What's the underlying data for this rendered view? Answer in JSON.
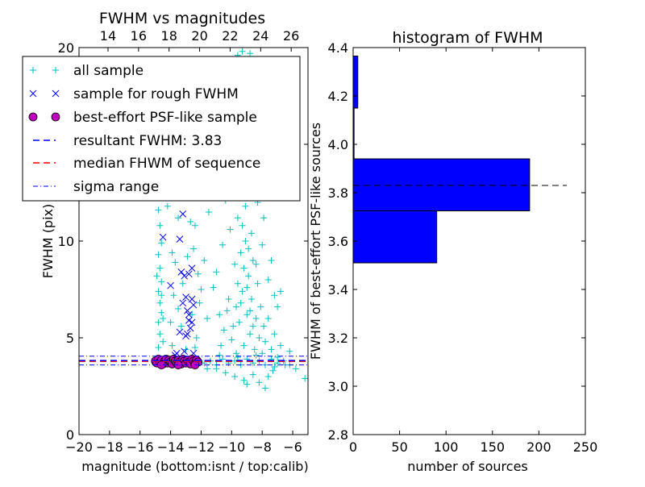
{
  "chart_data": [
    {
      "type": "scatter",
      "title": "FWHM vs magnitudes",
      "xlabel": "magnitude (bottom:isnt / top:calib)",
      "ylabel": "FWHM (pix)",
      "xlim": [
        -20,
        -5
      ],
      "ylim": [
        0,
        20
      ],
      "xticks": [
        -20,
        -18,
        -16,
        -14,
        -12,
        -10,
        -8,
        -6
      ],
      "xtick_labels": [
        "−20",
        "−18",
        "−16",
        "−14",
        "−12",
        "−10",
        "−8",
        "−6"
      ],
      "yticks": [
        0,
        5,
        10,
        15,
        20
      ],
      "ytick_labels": [
        "0",
        "5",
        "10",
        "15",
        "20"
      ],
      "top_xticks": [
        14,
        16,
        18,
        20,
        22,
        24,
        26
      ],
      "top_xtick_labels": [
        "14",
        "16",
        "18",
        "20",
        "22",
        "24",
        "26"
      ],
      "top_axis_offset": 32.1,
      "grid": false,
      "legend_placement": "upper-left",
      "legend": [
        {
          "label": "all sample",
          "marker": "plus",
          "color": "#00bfbf"
        },
        {
          "label": "sample for rough FWHM",
          "marker": "x",
          "color": "#0000ff"
        },
        {
          "label": "best-effort PSF-like sample",
          "marker": "circle",
          "color": "#bf00bf"
        },
        {
          "label": "resultant FWHM: 3.83",
          "marker": "dashed",
          "color": "#0000ff"
        },
        {
          "label": "median FHWM of sequence",
          "marker": "dashed",
          "color": "#ff0000"
        },
        {
          "label": "sigma range",
          "marker": "dashdot",
          "color": "#0000ff"
        }
      ],
      "hlines": {
        "resultant": 3.83,
        "median": 3.83,
        "sigma_low": 3.6,
        "sigma_high": 4.05
      },
      "series": [
        {
          "name": "all sample",
          "color": "#00bfbf",
          "points": [
            [
              -14.8,
              4.5
            ],
            [
              -14.7,
              5.2
            ],
            [
              -14.8,
              5.8
            ],
            [
              -14.6,
              6.3
            ],
            [
              -14.7,
              6.8
            ],
            [
              -14.8,
              7.4
            ],
            [
              -14.6,
              7.9
            ],
            [
              -14.7,
              8.6
            ],
            [
              -14.8,
              9.3
            ],
            [
              -14.6,
              9.9
            ],
            [
              -14.7,
              10.8
            ],
            [
              -14.8,
              11.6
            ],
            [
              -14.6,
              12.4
            ],
            [
              -14.7,
              13.2
            ],
            [
              -14.6,
              14.5
            ],
            [
              -14.8,
              15.8
            ],
            [
              -14.5,
              4.8
            ],
            [
              -14.5,
              6.0
            ],
            [
              -14.6,
              7.2
            ],
            [
              -14.9,
              8.2
            ],
            [
              -14.2,
              11.8
            ],
            [
              -13.9,
              9.4
            ],
            [
              -13.7,
              8.9
            ],
            [
              -13.5,
              11.2
            ],
            [
              -13.3,
              12.3
            ],
            [
              -13.0,
              12.6
            ],
            [
              -12.7,
              11.0
            ],
            [
              -12.4,
              10.8
            ],
            [
              -13.8,
              7.2
            ],
            [
              -13.5,
              6.5
            ],
            [
              -13.2,
              7.8
            ],
            [
              -12.9,
              9.2
            ],
            [
              -12.5,
              9.6
            ],
            [
              -12.2,
              8.3
            ],
            [
              -12.0,
              7.5
            ],
            [
              -14.0,
              5.8
            ],
            [
              -13.3,
              5.6
            ],
            [
              -12.6,
              6.2
            ],
            [
              -12.3,
              5.0
            ],
            [
              -12.1,
              6.8
            ],
            [
              -13.9,
              4.6
            ],
            [
              -13.0,
              4.4
            ],
            [
              -12.4,
              4.5
            ],
            [
              -14.2,
              13.8
            ],
            [
              -13.6,
              15.2
            ],
            [
              -12.8,
              14.0
            ],
            [
              -12.2,
              13.0
            ],
            [
              -11.8,
              9.0
            ],
            [
              -11.6,
              6.0
            ],
            [
              -11.5,
              11.5
            ],
            [
              -11.2,
              7.6
            ],
            [
              -11.0,
              8.4
            ],
            [
              -10.8,
              6.2
            ],
            [
              -10.6,
              9.8
            ],
            [
              -10.5,
              5.4
            ],
            [
              -10.4,
              12.1
            ],
            [
              -10.2,
              7.0
            ],
            [
              -10.1,
              10.6
            ],
            [
              -10.0,
              4.9
            ],
            [
              -9.9,
              13.5
            ],
            [
              -9.8,
              8.8
            ],
            [
              -9.7,
              6.6
            ],
            [
              -9.6,
              11.2
            ],
            [
              -9.5,
              5.8
            ],
            [
              -9.4,
              9.4
            ],
            [
              -9.3,
              7.4
            ],
            [
              -9.2,
              4.6
            ],
            [
              -9.1,
              10.0
            ],
            [
              -9.0,
              6.2
            ],
            [
              -8.9,
              8.2
            ],
            [
              -8.8,
              5.2
            ],
            [
              -8.7,
              7.0
            ],
            [
              -8.6,
              9.0
            ],
            [
              -8.5,
              4.4
            ],
            [
              -8.4,
              6.0
            ],
            [
              -8.3,
              7.8
            ],
            [
              -8.2,
              5.0
            ],
            [
              -8.1,
              6.6
            ],
            [
              -8.0,
              4.2
            ],
            [
              -7.9,
              5.6
            ],
            [
              -7.8,
              4.8
            ],
            [
              -7.6,
              6.0
            ],
            [
              -7.4,
              4.4
            ],
            [
              -7.2,
              5.2
            ],
            [
              -7.0,
              4.0
            ],
            [
              -6.8,
              4.6
            ],
            [
              -6.5,
              3.6
            ],
            [
              -6.2,
              4.3
            ],
            [
              -5.8,
              3.4
            ],
            [
              -5.2,
              2.9
            ],
            [
              -9.6,
              7.8
            ],
            [
              -9.4,
              6.8
            ],
            [
              -9.2,
              8.6
            ],
            [
              -9.0,
              7.6
            ],
            [
              -8.8,
              6.4
            ],
            [
              -8.6,
              5.6
            ],
            [
              -8.9,
              9.6
            ],
            [
              -9.3,
              10.8
            ],
            [
              -9.5,
              12.6
            ],
            [
              -9.1,
              11.8
            ],
            [
              -8.7,
              10.4
            ],
            [
              -8.4,
              8.8
            ],
            [
              -9.7,
              4.2
            ],
            [
              -9.9,
              5.6
            ],
            [
              -10.3,
              6.4
            ],
            [
              -10.7,
              4.6
            ],
            [
              -11.0,
              3.4
            ],
            [
              -10.4,
              3.2
            ],
            [
              -9.8,
              3.0
            ],
            [
              -9.2,
              2.8
            ],
            [
              -8.6,
              3.1
            ],
            [
              -8.2,
              2.7
            ],
            [
              -7.8,
              2.4
            ],
            [
              -7.6,
              3.0
            ],
            [
              -7.3,
              3.3
            ],
            [
              -9.0,
              2.6
            ],
            [
              -9.6,
              19.6
            ],
            [
              -9.3,
              19.8
            ],
            [
              -8.8,
              19.7
            ],
            [
              -9.8,
              15.2
            ],
            [
              -9.2,
              14.4
            ],
            [
              -8.6,
              13.2
            ],
            [
              -8.3,
              12.0
            ],
            [
              -7.9,
              11.2
            ],
            [
              -10.8,
              14.8
            ],
            [
              -10.2,
              16.0
            ],
            [
              -11.4,
              12.8
            ],
            [
              -7.6,
              8.0
            ],
            [
              -7.2,
              7.2
            ],
            [
              -7.0,
              6.6
            ],
            [
              -6.8,
              7.4
            ],
            [
              -7.4,
              9.0
            ],
            [
              -8.0,
              9.8
            ],
            [
              -11.8,
              3.7
            ],
            [
              -11.4,
              3.8
            ],
            [
              -11.0,
              3.6
            ],
            [
              -10.6,
              3.9
            ],
            [
              -10.2,
              3.7
            ],
            [
              -9.8,
              3.8
            ],
            [
              -9.4,
              3.6
            ],
            [
              -9.0,
              3.9
            ],
            [
              -8.6,
              3.7
            ],
            [
              -8.2,
              3.8
            ],
            [
              -7.8,
              3.6
            ],
            [
              -7.4,
              3.9
            ],
            [
              -7.0,
              3.7
            ],
            [
              -6.6,
              3.8
            ],
            [
              -6.2,
              3.6
            ],
            [
              -11.6,
              3.4
            ],
            [
              -10.8,
              4.1
            ],
            [
              -9.6,
              4.0
            ],
            [
              -8.4,
              4.1
            ],
            [
              -7.2,
              3.5
            ]
          ]
        },
        {
          "name": "sample for rough FWHM",
          "color": "#0000ff",
          "points": [
            [
              -14.5,
              10.2
            ],
            [
              -13.2,
              11.4
            ],
            [
              -13.4,
              10.1
            ],
            [
              -13.3,
              8.4
            ],
            [
              -13.1,
              8.2
            ],
            [
              -12.6,
              8.6
            ],
            [
              -12.8,
              8.3
            ],
            [
              -14.0,
              7.7
            ],
            [
              -13.2,
              6.8
            ],
            [
              -12.6,
              7.0
            ],
            [
              -12.5,
              6.7
            ],
            [
              -12.9,
              6.4
            ],
            [
              -12.8,
              5.9
            ],
            [
              -12.6,
              5.8
            ],
            [
              -13.4,
              5.3
            ],
            [
              -12.7,
              5.5
            ],
            [
              -13.0,
              5.1
            ],
            [
              -12.9,
              5.2
            ],
            [
              -13.6,
              4.2
            ],
            [
              -13.7,
              4.1
            ],
            [
              -13.1,
              4.3
            ],
            [
              -12.5,
              4.2
            ],
            [
              -13.0,
              7.1
            ],
            [
              -12.8,
              6.2
            ]
          ]
        },
        {
          "name": "best-effort PSF-like sample",
          "color": "#bf00bf",
          "points": [
            [
              -15.0,
              3.8
            ],
            [
              -14.9,
              3.7
            ],
            [
              -14.8,
              3.9
            ],
            [
              -14.7,
              3.75
            ],
            [
              -14.6,
              3.85
            ],
            [
              -14.5,
              3.65
            ],
            [
              -14.4,
              3.8
            ],
            [
              -14.3,
              3.9
            ],
            [
              -14.2,
              3.7
            ],
            [
              -14.1,
              3.85
            ],
            [
              -14.0,
              3.75
            ],
            [
              -13.9,
              3.65
            ],
            [
              -13.8,
              3.9
            ],
            [
              -13.7,
              3.8
            ],
            [
              -13.6,
              3.7
            ],
            [
              -13.5,
              3.85
            ],
            [
              -13.4,
              3.75
            ],
            [
              -13.3,
              3.65
            ],
            [
              -13.2,
              3.9
            ],
            [
              -13.1,
              3.8
            ],
            [
              -13.0,
              3.7
            ],
            [
              -12.9,
              3.85
            ],
            [
              -12.8,
              3.75
            ],
            [
              -12.7,
              3.65
            ],
            [
              -12.6,
              3.9
            ],
            [
              -12.5,
              3.8
            ],
            [
              -12.4,
              3.7
            ],
            [
              -12.3,
              3.85
            ],
            [
              -12.2,
              3.75
            ],
            [
              -14.6,
              3.6
            ],
            [
              -13.5,
              3.6
            ],
            [
              -12.4,
              3.6
            ]
          ]
        }
      ]
    },
    {
      "type": "bar",
      "orientation": "horizontal",
      "title": "histogram of FWHM",
      "xlabel": "number of sources",
      "ylabel": "FWHM of best-effort PSF-like sources",
      "xlim": [
        0,
        250
      ],
      "ylim": [
        2.8,
        4.4
      ],
      "xticks": [
        0,
        50,
        100,
        150,
        200,
        250
      ],
      "xtick_labels": [
        "0",
        "50",
        "100",
        "150",
        "200",
        "250"
      ],
      "yticks": [
        2.8,
        3.0,
        3.2,
        3.4,
        3.6,
        3.8,
        4.0,
        4.2,
        4.4
      ],
      "ytick_labels": [
        "2.8",
        "3.0",
        "3.2",
        "3.4",
        "3.6",
        "3.8",
        "4.0",
        "4.2",
        "4.4"
      ],
      "bins": [
        {
          "from": 3.51,
          "to": 3.725,
          "count": 90
        },
        {
          "from": 3.725,
          "to": 3.94,
          "count": 190
        },
        {
          "from": 3.94,
          "to": 4.15,
          "count": 1
        },
        {
          "from": 4.15,
          "to": 4.365,
          "count": 5
        }
      ],
      "bar_color": "#0000ff",
      "reference_line": {
        "value": 3.83,
        "extent": 230,
        "color": "#000000"
      }
    }
  ]
}
